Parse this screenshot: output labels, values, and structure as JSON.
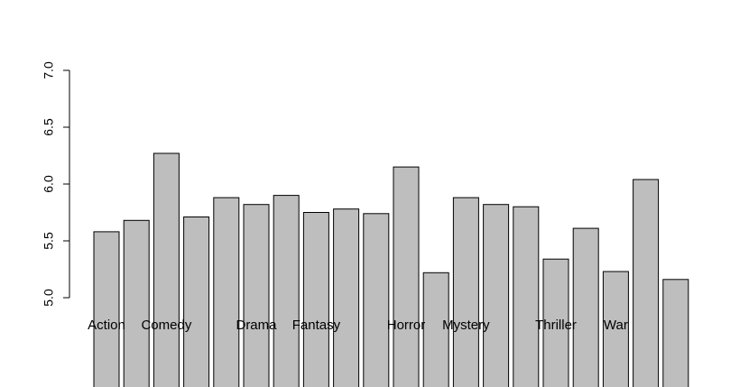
{
  "chart_data": {
    "type": "bar",
    "title": "",
    "xlabel": "",
    "ylabel": "",
    "ylim": [
      5.0,
      7.0
    ],
    "yticks": [
      "5.0",
      "5.5",
      "6.0",
      "6.5",
      "7.0"
    ],
    "categories": [
      "Action",
      "",
      "Comedy",
      "",
      "",
      "Drama",
      "",
      "Fantasy",
      "",
      "",
      "Horror",
      "",
      "Mystery",
      "",
      "",
      "Thriller",
      "",
      "War",
      "",
      ""
    ],
    "values": [
      5.58,
      5.68,
      6.27,
      5.71,
      5.88,
      5.82,
      5.9,
      5.75,
      5.78,
      5.74,
      6.15,
      5.22,
      5.88,
      5.82,
      5.8,
      5.34,
      5.61,
      5.23,
      6.04,
      5.16
    ],
    "bar_color": "#bebebe",
    "bar_border": "#000000",
    "grid": false
  }
}
